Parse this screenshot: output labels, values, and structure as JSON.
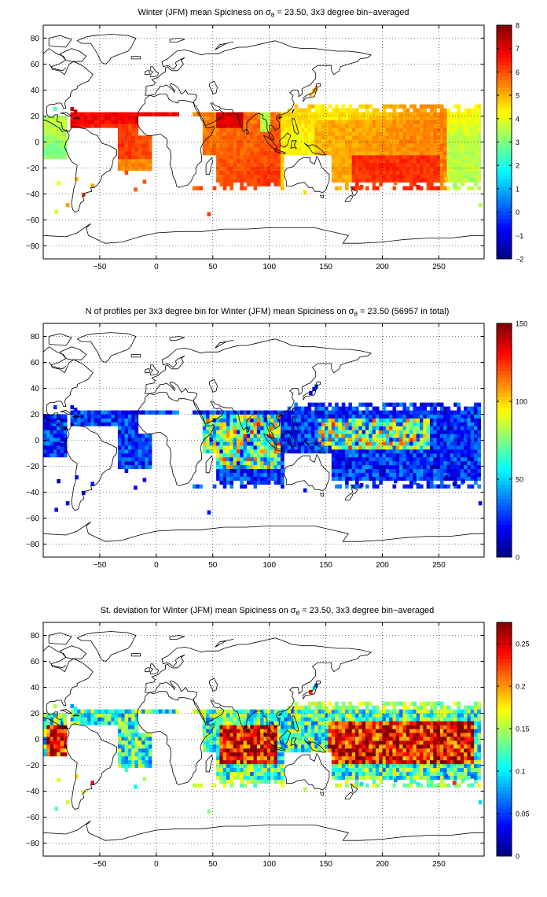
{
  "panels": [
    {
      "title_pre": "Winter (JFM) mean Spiciness on ",
      "title_sigma": "σ",
      "title_sub": "θ",
      "title_post": " = 23.50, 3x3 degree bin−averaged",
      "colorbar": {
        "min": -2,
        "max": 8,
        "ticks": [
          -2,
          -1,
          0,
          1,
          2,
          3,
          4,
          5,
          6,
          7,
          8
        ],
        "tick_labels": [
          "−2",
          "−1",
          "0",
          "1",
          "2",
          "3",
          "4",
          "5",
          "6",
          "7",
          "8"
        ]
      },
      "variable": "spiciness"
    },
    {
      "title_pre": "N of profiles per 3x3 degree bin for Winter (JFM) mean Spiciness on ",
      "title_sigma": "σ",
      "title_sub": "θ",
      "title_post": " = 23.50 (56957 in total)",
      "colorbar": {
        "min": 0,
        "max": 150,
        "ticks": [
          0,
          50,
          100,
          150
        ],
        "tick_labels": [
          "0",
          "50",
          "100",
          "150"
        ]
      },
      "variable": "count"
    },
    {
      "title_pre": "St. deviation for Winter (JFM) mean Spiciness on ",
      "title_sigma": "σ",
      "title_sub": "θ",
      "title_post": " = 23.50, 3x3 degree bin−averaged",
      "colorbar": {
        "min": 0,
        "max": 0.275,
        "ticks": [
          0,
          0.05,
          0.1,
          0.15,
          0.2,
          0.25
        ],
        "tick_labels": [
          "0",
          "0.05",
          "0.1",
          "0.15",
          "0.2",
          "0.25"
        ]
      },
      "variable": "stdev"
    }
  ],
  "axes": {
    "xlim": [
      -100,
      290
    ],
    "ylim": [
      -90,
      90
    ],
    "x_ticks": [
      -50,
      0,
      50,
      100,
      150,
      200,
      250
    ],
    "x_tick_labels": [
      "−50",
      "0",
      "50",
      "100",
      "150",
      "200",
      "250"
    ],
    "y_ticks": [
      -80,
      -60,
      -40,
      -20,
      0,
      20,
      40,
      60,
      80
    ],
    "y_tick_labels": [
      "−80",
      "−60",
      "−40",
      "−20",
      "0",
      "20",
      "40",
      "60",
      "80"
    ],
    "grid": "dotted",
    "colormap": "jet"
  }
}
